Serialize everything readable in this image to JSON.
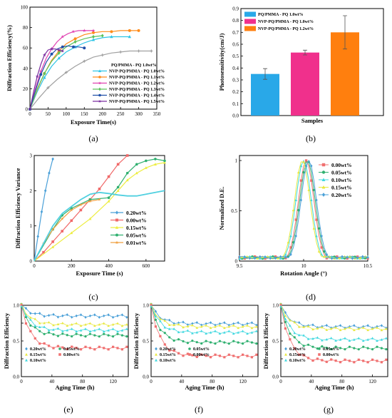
{
  "chart_data": [
    {
      "panel": "(a)",
      "type": "line",
      "xlabel": "Exposure Time(s)",
      "ylabel": "Diffraction Efficiency(%)",
      "xlim": [
        0,
        350
      ],
      "ylim": [
        0,
        100
      ],
      "xticks": [
        0,
        50,
        100,
        150,
        200,
        250,
        300,
        350
      ],
      "yticks": [
        0,
        20,
        40,
        60,
        80,
        100
      ],
      "legend_position": "center-right",
      "series": [
        {
          "name": "PQ/PMMA - PQ 1.0wt%",
          "color": "#a0a0a0",
          "marker": "plus",
          "x": [
            0,
            25,
            50,
            75,
            100,
            125,
            150,
            175,
            200,
            225,
            250,
            275,
            300,
            335
          ],
          "y": [
            0,
            11,
            21,
            29,
            36,
            42,
            47,
            51,
            53,
            55,
            56,
            57,
            57,
            57
          ]
        },
        {
          "name": "NVP-PQ/PMMA - PQ 1.0wt%",
          "color": "#2ec4e6",
          "marker": "triangle",
          "x": [
            0,
            20,
            40,
            60,
            80,
            100,
            125,
            150,
            175,
            200,
            225,
            250,
            275
          ],
          "y": [
            0,
            17,
            31,
            42,
            50,
            56,
            61,
            65,
            68,
            70,
            71,
            71,
            71
          ]
        },
        {
          "name": "NVP-PQ/PMMA - PQ 1.1wt%",
          "color": "#ff8c1a",
          "marker": "circle",
          "x": [
            0,
            20,
            40,
            60,
            80,
            100,
            125,
            150,
            175,
            200,
            225,
            250,
            275,
            300
          ],
          "y": [
            0,
            19,
            35,
            48,
            57,
            64,
            69,
            73,
            75,
            76,
            76,
            77,
            77,
            77
          ]
        },
        {
          "name": "NVP-PQ/PMMA - PQ 1.2wt%",
          "color": "#e040b0",
          "marker": "star",
          "x": [
            0,
            15,
            30,
            45,
            60,
            75,
            90,
            105,
            120,
            135,
            150,
            165,
            175
          ],
          "y": [
            0,
            20,
            37,
            50,
            59,
            66,
            71,
            74,
            76,
            77,
            77,
            77,
            77
          ]
        },
        {
          "name": "NVP-PQ/PMMA - PQ 1.3wt%",
          "color": "#5cc25c",
          "marker": "diamond",
          "x": [
            0,
            20,
            40,
            60,
            80,
            100,
            125,
            150,
            175,
            200
          ],
          "y": [
            0,
            20,
            35,
            47,
            55,
            61,
            66,
            69,
            71,
            72
          ]
        },
        {
          "name": "NVP-PQ/PMMA - PQ 1.4wt%",
          "color": "#1f4fa8",
          "marker": "circle",
          "x": [
            0,
            15,
            30,
            45,
            60,
            75,
            90,
            105,
            120,
            135,
            150
          ],
          "y": [
            0,
            18,
            34,
            46,
            54,
            59,
            61,
            62,
            61,
            61,
            60
          ]
        },
        {
          "name": "NVP-PQ/PMMA - PQ 1.5wt%",
          "color": "#7b2fa0",
          "marker": "star",
          "x": [
            0,
            10,
            20,
            30,
            40,
            50,
            60,
            70,
            80,
            90
          ],
          "y": [
            0,
            17,
            32,
            44,
            53,
            58,
            59,
            59,
            58,
            57
          ]
        }
      ]
    },
    {
      "panel": "(b)",
      "type": "bar",
      "xlabel": "Samples",
      "ylabel": "Photosensitivity(cm/J)",
      "ylim": [
        0,
        0.9
      ],
      "yticks": [
        0.0,
        0.1,
        0.2,
        0.3,
        0.4,
        0.5,
        0.6,
        0.7,
        0.8,
        0.9
      ],
      "legend_position": "top-left",
      "series": [
        {
          "name": "PQ/PMMA - PQ 1.0wt%",
          "color": "#29a8e8",
          "value": 0.35,
          "error": 0.045
        },
        {
          "name": "NVP-PQ/PMMA - PQ 1.0wt%",
          "color": "#f0308c",
          "value": 0.53,
          "error": 0.02
        },
        {
          "name": "NVP-PQ/PMMA - PQ 1.2wt%",
          "color": "#ff7f0e",
          "value": 0.7,
          "error": 0.14
        }
      ]
    },
    {
      "panel": "(c)",
      "type": "line",
      "xlabel": "Exposure Time (s)",
      "ylabel": "Diffraction Efficiency Variance",
      "xlim": [
        0,
        700
      ],
      "ylim": [
        0,
        3
      ],
      "xticks": [
        0,
        200,
        400,
        600
      ],
      "yticks": [
        0,
        1,
        2,
        3
      ],
      "legend_position": "bottom-right",
      "series": [
        {
          "name": "0.20wt%",
          "color": "#4aa0d8",
          "marker": "diamond",
          "x": [
            0,
            20,
            40,
            60,
            80,
            100
          ],
          "y": [
            0,
            0.7,
            1.4,
            2.0,
            2.5,
            2.9
          ]
        },
        {
          "name": "0.00wt%",
          "color": "#f06868",
          "marker": "square",
          "x": [
            0,
            50,
            100,
            150,
            200,
            250,
            300,
            350,
            400,
            450,
            500
          ],
          "y": [
            0,
            0.25,
            0.55,
            0.85,
            1.15,
            1.45,
            1.75,
            2.05,
            2.4,
            2.75,
            3.0
          ]
        },
        {
          "name": "0.15wt%",
          "color": "#eded40",
          "marker": "triangle",
          "x": [
            0,
            100,
            200,
            300,
            400,
            450,
            500,
            550,
            600,
            650,
            700
          ],
          "y": [
            0,
            0.4,
            0.8,
            1.2,
            1.7,
            2.0,
            2.3,
            2.5,
            2.65,
            2.75,
            2.8
          ]
        },
        {
          "name": "0.05wt%",
          "color": "#30b070",
          "marker": "circle",
          "x": [
            0,
            100,
            150,
            200,
            300,
            400,
            450,
            500,
            550,
            600,
            650,
            700
          ],
          "y": [
            0,
            0.9,
            1.3,
            1.5,
            1.75,
            1.8,
            2.1,
            2.5,
            2.75,
            2.85,
            2.9,
            2.85
          ]
        },
        {
          "name": "0.01wt%",
          "color": "#f0a040",
          "marker": "star",
          "x": [
            0,
            50,
            100,
            150,
            200,
            250,
            300,
            350
          ],
          "y": [
            0,
            0.5,
            0.9,
            1.2,
            1.45,
            1.6,
            1.7,
            1.75
          ]
        },
        {
          "name": "",
          "color": "#50d0e0",
          "marker": "line",
          "x": [
            0,
            100,
            150,
            200,
            250,
            300,
            350,
            400,
            450,
            500,
            550,
            600,
            650,
            700
          ],
          "y": [
            0,
            1.0,
            1.35,
            1.55,
            1.75,
            1.9,
            1.95,
            1.92,
            1.88,
            1.85,
            1.85,
            1.9,
            1.95,
            2.0
          ]
        }
      ]
    },
    {
      "panel": "(d)",
      "type": "line",
      "xlabel": "Rotation Angle (°)",
      "ylabel": "Normalized D.E.",
      "xlim": [
        9.5,
        10.5
      ],
      "ylim": [
        0.0,
        1.05
      ],
      "xticks": [
        9.5,
        10.0,
        10.5
      ],
      "yticks": [
        0.0,
        0.5,
        1.0
      ],
      "legend_position": "top-right",
      "series": [
        {
          "name": "0.00wt%",
          "color": "#f07070",
          "marker": "square",
          "center": 10.02
        },
        {
          "name": "0.05wt%",
          "color": "#30b070",
          "marker": "circle",
          "center": 10.03
        },
        {
          "name": "0.10wt%",
          "color": "#40d8e0",
          "marker": "triangle",
          "center": 10.0
        },
        {
          "name": "0.15wt%",
          "color": "#e8e840",
          "marker": "triangle",
          "center": 9.99
        },
        {
          "name": "0.20wt%",
          "color": "#4aa0d8",
          "marker": "diamond",
          "center": 10.04
        }
      ]
    },
    {
      "panel": "(e)",
      "type": "line",
      "xlabel": "Aging Time (h)",
      "ylabel": "Diffraction Efficiency",
      "xlim": [
        0,
        140
      ],
      "ylim": [
        0,
        1.0
      ],
      "xticks": [
        0,
        40,
        80,
        120
      ],
      "yticks": [
        0.0,
        0.25,
        0.5,
        0.75,
        1.0
      ],
      "yticklabels": [
        "0.0",
        "",
        "0.5",
        "",
        "1.0"
      ],
      "legend_position": "bottom-left",
      "series": [
        {
          "name": "0.20wt%",
          "color": "#4aa0d8",
          "marker": "diamond",
          "y0": 1.0,
          "yend": 0.85
        },
        {
          "name": "0.05wt%",
          "color": "#30b070",
          "marker": "circle",
          "y0": 1.0,
          "yend": 0.58
        },
        {
          "name": "0.15wt%",
          "color": "#e8e840",
          "marker": "triangle",
          "y0": 1.0,
          "yend": 0.73
        },
        {
          "name": "0.00wt%",
          "color": "#f07070",
          "marker": "square",
          "y0": 1.0,
          "yend": 0.4
        },
        {
          "name": "0.10wt%",
          "color": "#40d8e0",
          "marker": "triangle",
          "y0": 1.0,
          "yend": 0.65
        }
      ]
    },
    {
      "panel": "(f)",
      "type": "line",
      "xlabel": "Aging Time (h)",
      "ylabel": "Diffraction Efficiency",
      "xlim": [
        0,
        140
      ],
      "ylim": [
        0,
        1.0
      ],
      "xticks": [
        0,
        40,
        80,
        120
      ],
      "yticks": [
        0.0,
        0.25,
        0.5,
        0.75,
        1.0
      ],
      "yticklabels": [
        "0.0",
        "",
        "0.5",
        "",
        "1.0"
      ],
      "legend_position": "bottom-left",
      "series": [
        {
          "name": "0.20wt%",
          "color": "#4aa0d8",
          "marker": "diamond",
          "y0": 1.0,
          "yend": 0.74
        },
        {
          "name": "0.05wt%",
          "color": "#30b070",
          "marker": "circle",
          "y0": 1.0,
          "yend": 0.48
        },
        {
          "name": "0.15wt%",
          "color": "#e8e840",
          "marker": "triangle",
          "y0": 1.0,
          "yend": 0.7
        },
        {
          "name": "0.00wt%",
          "color": "#f07070",
          "marker": "square",
          "y0": 1.0,
          "yend": 0.29
        },
        {
          "name": "0.10wt%",
          "color": "#40d8e0",
          "marker": "triangle",
          "y0": 1.0,
          "yend": 0.62
        }
      ]
    },
    {
      "panel": "(g)",
      "type": "line",
      "xlabel": "Aging Time (h)",
      "ylabel": "Diffraction Efficiency",
      "xlim": [
        0,
        140
      ],
      "ylim": [
        0,
        1.0
      ],
      "xticks": [
        0,
        40,
        80,
        120
      ],
      "yticks": [
        0.0,
        0.25,
        0.5,
        0.75,
        1.0
      ],
      "yticklabels": [
        "0.0",
        "",
        "0.5",
        "",
        "1.0"
      ],
      "legend_position": "bottom-left",
      "series": [
        {
          "name": "0.20wt%",
          "color": "#4aa0d8",
          "marker": "diamond",
          "y0": 1.0,
          "yend": 0.7
        },
        {
          "name": "0.05wt%",
          "color": "#30b070",
          "marker": "circle",
          "y0": 1.0,
          "yend": 0.4
        },
        {
          "name": "0.15wt%",
          "color": "#e8e840",
          "marker": "triangle",
          "y0": 1.0,
          "yend": 0.67
        },
        {
          "name": "0.00wt%",
          "color": "#f07070",
          "marker": "square",
          "y0": 1.0,
          "yend": 0.22
        },
        {
          "name": "0.10wt%",
          "color": "#40d8e0",
          "marker": "triangle",
          "y0": 1.0,
          "yend": 0.52
        }
      ]
    }
  ]
}
